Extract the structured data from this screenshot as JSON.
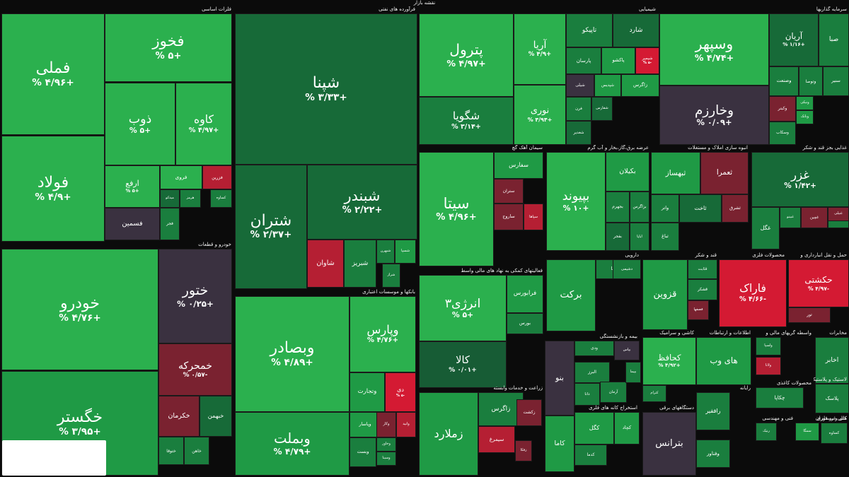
{
  "page_title": "نقشه بازار",
  "colors": {
    "g5": "#2bb04e",
    "g4": "#1f9a45",
    "g3": "#1a7e3e",
    "g2": "#176a38",
    "g1": "#175c35",
    "neutral": "#3a3140",
    "r1": "#7a2230",
    "r2": "#b51f33",
    "r3": "#d41a33"
  },
  "chart_data": {
    "type": "treemap",
    "title": "نقشه بازار",
    "sectors": [
      {
        "name": "فلزات اساسی",
        "tiles": [
          {
            "name": "فملی",
            "value": "+۴/۹۶ %",
            "c": "g5"
          },
          {
            "name": "فولاد",
            "value": "+۴/۹ %",
            "c": "g5"
          },
          {
            "name": "فخوز",
            "value": "+۵ %",
            "c": "g5"
          },
          {
            "name": "ذوب",
            "value": "+۵ %",
            "c": "g5"
          },
          {
            "name": "کاوه",
            "value": "+۴/۹۷ %",
            "c": "g5"
          },
          {
            "name": "ارفع",
            "value": "+۵ %",
            "c": "g5"
          },
          {
            "name": "فروی",
            "value": "",
            "c": "g5"
          },
          {
            "name": "فزرین",
            "value": "",
            "c": "r2"
          },
          {
            "name": "هرمز",
            "value": "",
            "c": "g3"
          },
          {
            "name": "کساوه",
            "value": "",
            "c": "g3"
          },
          {
            "name": "میدکو",
            "value": "",
            "c": "g2"
          },
          {
            "name": "فسمین",
            "value": "",
            "c": "neutral"
          },
          {
            "name": "فجر",
            "value": "",
            "c": "g3"
          }
        ]
      },
      {
        "name": "خودرو و قطعات",
        "tiles": [
          {
            "name": "خودرو",
            "value": "+۴/۷۶ %",
            "c": "g5"
          },
          {
            "name": "خگستر",
            "value": "+۳/۹۵ %",
            "c": "g4"
          },
          {
            "name": "ختور",
            "value": "+۰/۲۵ %",
            "c": "neutral"
          },
          {
            "name": "خمحرکه",
            "value": "-۰/۵۷ %",
            "c": "r1"
          },
          {
            "name": "خکرمان",
            "value": "",
            "c": "r1"
          },
          {
            "name": "خبهمن",
            "value": "",
            "c": "g2"
          },
          {
            "name": "ختوقا",
            "value": "",
            "c": "g3"
          },
          {
            "name": "خاهن",
            "value": "",
            "c": "g3"
          }
        ]
      },
      {
        "name": "فرآورده های نفتی",
        "tiles": [
          {
            "name": "شپنا",
            "value": "+۳/۳۳ %",
            "c": "g2"
          },
          {
            "name": "شتران",
            "value": "+۲/۳۷ %",
            "c": "g2"
          },
          {
            "name": "شبندر",
            "value": "+۲/۲۲ %",
            "c": "g2"
          },
          {
            "name": "شاوان",
            "value": "",
            "c": "r2"
          },
          {
            "name": "شبریز",
            "value": "",
            "c": "g3"
          },
          {
            "name": "شبهرن",
            "value": "",
            "c": "g3"
          },
          {
            "name": "شسپا",
            "value": "",
            "c": "g4"
          },
          {
            "name": "شراز",
            "value": "",
            "c": "g3"
          }
        ]
      },
      {
        "name": "بانکها و موسسات اعتباری",
        "tiles": [
          {
            "name": "وبصادر",
            "value": "+۴/۸۹ %",
            "c": "g5"
          },
          {
            "name": "وبملت",
            "value": "+۴/۷۹ %",
            "c": "g4"
          },
          {
            "name": "وپارس",
            "value": "+۴/۷۶ %",
            "c": "g5"
          },
          {
            "name": "وتجارت",
            "value": "",
            "c": "g4"
          },
          {
            "name": "دی",
            "value": "-۵ %",
            "c": "r3"
          },
          {
            "name": "وپاسار",
            "value": "",
            "c": "g4"
          },
          {
            "name": "وکار",
            "value": "",
            "c": "r1"
          },
          {
            "name": "وانید",
            "value": "",
            "c": "r2"
          },
          {
            "name": "وبست",
            "value": "",
            "c": "g3"
          },
          {
            "name": "وخاور",
            "value": "",
            "c": "g3"
          },
          {
            "name": "وسینا",
            "value": "",
            "c": "g3"
          }
        ]
      },
      {
        "name": "شیمیایی",
        "tiles": [
          {
            "name": "پترول",
            "value": "+۴/۹۷ %",
            "c": "g5"
          },
          {
            "name": "شگویا",
            "value": "+۳/۱۴ %",
            "c": "g3"
          },
          {
            "name": "آریا",
            "value": "+۴/۹ %",
            "c": "g5"
          },
          {
            "name": "نوری",
            "value": "+۴/۹۴ %",
            "c": "g5"
          },
          {
            "name": "تاپیکو",
            "value": "",
            "c": "g3"
          },
          {
            "name": "شارد",
            "value": "",
            "c": "g2"
          },
          {
            "name": "پارسان",
            "value": "",
            "c": "g3"
          },
          {
            "name": "پاکشو",
            "value": "",
            "c": "g4"
          },
          {
            "name": "شپمپر",
            "value": "-۵ %",
            "c": "r3"
          },
          {
            "name": "شیلی",
            "value": "",
            "c": "neutral"
          },
          {
            "name": "شپدیس",
            "value": "",
            "c": "g4"
          },
          {
            "name": "زاگرس",
            "value": "",
            "c": "g4"
          },
          {
            "name": "فرن",
            "value": "",
            "c": "g3"
          },
          {
            "name": "شفارس",
            "value": "",
            "c": "g2"
          },
          {
            "name": "شغدیر",
            "value": "",
            "c": "g2"
          }
        ]
      },
      {
        "name": "سرمایه گذاریها",
        "tiles": [
          {
            "name": "وسپهر",
            "value": "+۴/۷۴ %",
            "c": "g5"
          },
          {
            "name": "وخارزم",
            "value": "+۰/۰۹ %",
            "c": "neutral"
          },
          {
            "name": "آریان",
            "value": "+۱/۱۶ %",
            "c": "g2"
          },
          {
            "name": "صبا",
            "value": "",
            "c": "g3"
          },
          {
            "name": "وصنعت",
            "value": "",
            "c": "g3"
          },
          {
            "name": "وتوصا",
            "value": "",
            "c": "g3"
          },
          {
            "name": "سنیر",
            "value": "",
            "c": "g3"
          },
          {
            "name": "وکبتر",
            "value": "",
            "c": "r1"
          },
          {
            "name": "ونیکی",
            "value": "",
            "c": "g4"
          },
          {
            "name": "وبانک",
            "value": "",
            "c": "g4"
          },
          {
            "name": "وسکاب",
            "value": "",
            "c": "g3"
          }
        ]
      },
      {
        "name": "سیمان آهک گچ",
        "tiles": [
          {
            "name": "سیتا",
            "value": "+۴/۹۶ %",
            "c": "g5"
          },
          {
            "name": "سفارس",
            "value": "",
            "c": "g4"
          },
          {
            "name": "ستران",
            "value": "",
            "c": "r1"
          },
          {
            "name": "ساروج",
            "value": "",
            "c": "r1"
          },
          {
            "name": "سپاها",
            "value": "",
            "c": "r2"
          }
        ]
      },
      {
        "name": "عرضه برق،گاز،بخار و آب گرم",
        "tiles": [
          {
            "name": "بپیوند",
            "value": "+۱۰ %",
            "c": "g5"
          },
          {
            "name": "بکیلان",
            "value": "",
            "c": "g4"
          },
          {
            "name": "بجهرم",
            "value": "",
            "c": "g3"
          },
          {
            "name": "بزاگرس",
            "value": "",
            "c": "g3"
          },
          {
            "name": "بفجر",
            "value": "",
            "c": "g2"
          },
          {
            "name": "ابایا",
            "value": "",
            "c": "g3"
          }
        ]
      },
      {
        "name": "انبوه سازی املاک و مستغلات",
        "tiles": [
          {
            "name": "ثبهساز",
            "value": "",
            "c": "g4"
          },
          {
            "name": "ثعمرا",
            "value": "",
            "c": "r1"
          },
          {
            "name": "واتر",
            "value": "",
            "c": "g3"
          },
          {
            "name": "ثباغ",
            "value": "",
            "c": "g3"
          },
          {
            "name": "ثاخت",
            "value": "",
            "c": "g2"
          },
          {
            "name": "ثشرق",
            "value": "",
            "c": "r1"
          }
        ]
      },
      {
        "name": "غذایی بجز قند و شکر",
        "tiles": [
          {
            "name": "غزر",
            "value": "+۱/۴۲ %",
            "c": "g2"
          },
          {
            "name": "غگل",
            "value": "",
            "c": "g3"
          },
          {
            "name": "غبینو",
            "value": "",
            "c": "g3"
          },
          {
            "name": "غسالم",
            "value": "",
            "c": "g3"
          },
          {
            "name": "غنیلی",
            "value": "",
            "c": "r1"
          },
          {
            "name": "غچین",
            "value": "",
            "c": "r1"
          }
        ]
      },
      {
        "name": "فعالیتهای کمکی به نهاد های مالی واسط",
        "tiles": [
          {
            "name": "انرژی۳",
            "value": "+۵ %",
            "c": "g5"
          },
          {
            "name": "فرابورس",
            "value": "",
            "c": "g4"
          },
          {
            "name": "بورس",
            "value": "",
            "c": "g3"
          },
          {
            "name": "کالا",
            "value": "+۰/۰۱ %",
            "c": "g1"
          }
        ]
      },
      {
        "name": "دارویی",
        "tiles": [
          {
            "name": "برکت",
            "value": "",
            "c": "g4"
          },
          {
            "name": "دسبحا",
            "value": "",
            "c": "g3"
          },
          {
            "name": "دشیمی",
            "value": "",
            "c": "g3"
          }
        ]
      },
      {
        "name": "قند و شکر",
        "tiles": [
          {
            "name": "قزوین",
            "value": "",
            "c": "g4"
          },
          {
            "name": "قشکر",
            "value": "",
            "c": "g3"
          },
          {
            "name": "قصفها",
            "value": "",
            "c": "r1"
          },
          {
            "name": "قثابت",
            "value": "",
            "c": "g3"
          }
        ]
      },
      {
        "name": "محصولات فلزی",
        "tiles": [
          {
            "name": "فاراک",
            "value": "-۴/۶۶ %",
            "c": "r3"
          }
        ]
      },
      {
        "name": "حمل و نقل انبارداری و",
        "tiles": [
          {
            "name": "حکشتی",
            "value": "-۴/۹۷ %",
            "c": "r3"
          },
          {
            "name": "تور",
            "value": "",
            "c": "r1"
          }
        ]
      },
      {
        "name": "زراعت و خدمات وابسته",
        "tiles": [
          {
            "name": "زملارد",
            "value": "",
            "c": "g4"
          },
          {
            "name": "زاگرس",
            "value": "",
            "c": "g3"
          },
          {
            "name": "سیمرغ",
            "value": "",
            "c": "r2"
          },
          {
            "name": "زکشت",
            "value": "",
            "c": "r1"
          },
          {
            "name": "زفکا",
            "value": "",
            "c": "r1"
          }
        ]
      },
      {
        "name": "بیمه و بازنشستگی",
        "tiles": [
          {
            "name": "ودی",
            "value": "",
            "c": "g3"
          },
          {
            "name": "بپاس",
            "value": "",
            "c": "neutral"
          },
          {
            "name": "بنو",
            "value": "",
            "c": "neutral"
          },
          {
            "name": "البرز",
            "value": "",
            "c": "g3"
          },
          {
            "name": "آرمان",
            "value": "",
            "c": "g3"
          },
          {
            "name": "بپیما",
            "value": "",
            "c": "g3"
          },
          {
            "name": "دانا",
            "value": "",
            "c": "g3"
          }
        ]
      },
      {
        "name": "کاشی و سرامیک",
        "tiles": [
          {
            "name": "کحافظ",
            "value": "+۴/۹۲ %",
            "c": "g5"
          },
          {
            "name": "کترام",
            "value": "",
            "c": "g3"
          }
        ]
      },
      {
        "name": "اطلاعات و ارتباطات",
        "tiles": [
          {
            "name": "های وب",
            "value": "",
            "c": "g4"
          }
        ]
      },
      {
        "name": "واسطه گریهای مالی و",
        "tiles": [
          {
            "name": "ولسپا",
            "value": "",
            "c": "g3"
          },
          {
            "name": "ولانا",
            "value": "",
            "c": "r2"
          }
        ]
      },
      {
        "name": "مخابرات",
        "tiles": [
          {
            "name": "اخابر",
            "value": "",
            "c": "g3"
          }
        ]
      },
      {
        "name": "استخراج کانه های فلزی",
        "tiles": [
          {
            "name": "کگل",
            "value": "",
            "c": "g4"
          },
          {
            "name": "کچاد",
            "value": "",
            "c": "g4"
          },
          {
            "name": "کدما",
            "value": "",
            "c": "g3"
          },
          {
            "name": "کاما",
            "value": "",
            "c": "g4"
          }
        ]
      },
      {
        "name": "دستگاههای برقی",
        "tiles": [
          {
            "name": "بترانس",
            "value": "",
            "c": "neutral"
          }
        ]
      },
      {
        "name": "رایانه",
        "tiles": [
          {
            "name": "رافقیر",
            "value": "",
            "c": "g3"
          },
          {
            "name": "وفناور",
            "value": "",
            "c": "g3"
          }
        ]
      },
      {
        "name": "محصولات کاغذی",
        "tiles": [
          {
            "name": "چکاپا",
            "value": "",
            "c": "g3"
          }
        ]
      },
      {
        "name": "لاستیک و پلاستیک",
        "tiles": [
          {
            "name": "پلاسک",
            "value": "",
            "c": "g3"
          }
        ]
      },
      {
        "name": "فنی و مهندسی",
        "tiles": [
          {
            "name": "رنیک",
            "value": "",
            "c": "g3"
          }
        ]
      },
      {
        "name": "هتل و رستوران",
        "tiles": [
          {
            "name": "سمگا",
            "value": "",
            "c": "g4"
          }
        ]
      },
      {
        "name": "کانی غیر فلزی",
        "tiles": [
          {
            "name": "کساوه",
            "value": "",
            "c": "g3"
          }
        ]
      }
    ]
  }
}
